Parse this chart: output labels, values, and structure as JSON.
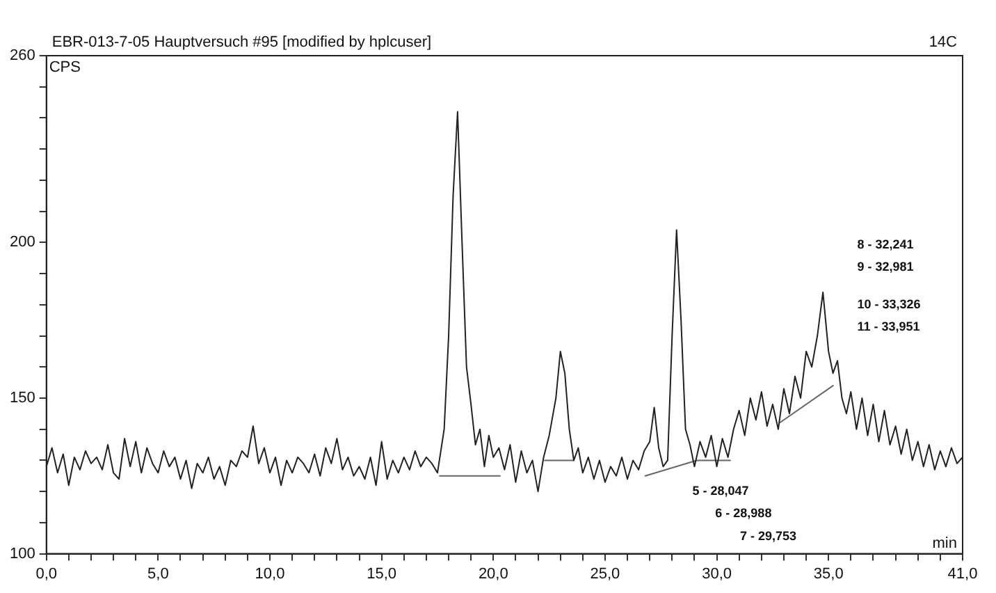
{
  "chart_data": {
    "type": "line",
    "title": "EBR-013-7-05 Hauptversuch #95 [modified by hplcuser]",
    "xlabel": "min",
    "ylabel": "CPS",
    "x": [
      0,
      0.25,
      0.5,
      0.75,
      1,
      1.25,
      1.5,
      1.75,
      2,
      2.25,
      2.5,
      2.75,
      3,
      3.25,
      3.5,
      3.75,
      4,
      4.25,
      4.5,
      4.75,
      5,
      5.25,
      5.5,
      5.75,
      6,
      6.25,
      6.5,
      6.75,
      7,
      7.25,
      7.5,
      7.75,
      8,
      8.25,
      8.5,
      8.75,
      9,
      9.25,
      9.5,
      9.75,
      10,
      10.25,
      10.5,
      10.75,
      11,
      11.25,
      11.5,
      11.75,
      12,
      12.25,
      12.5,
      12.75,
      13,
      13.25,
      13.5,
      13.75,
      14,
      14.25,
      14.5,
      14.75,
      15,
      15.25,
      15.5,
      15.75,
      16,
      16.25,
      16.5,
      16.75,
      17,
      17.25,
      17.5,
      17.8,
      18,
      18.2,
      18.4,
      18.6,
      18.8,
      19,
      19.2,
      19.4,
      19.6,
      19.8,
      20,
      20.25,
      20.5,
      20.75,
      21,
      21.25,
      21.5,
      21.75,
      22,
      22.25,
      22.5,
      22.8,
      23,
      23.2,
      23.4,
      23.6,
      23.8,
      24,
      24.25,
      24.5,
      24.75,
      25,
      25.25,
      25.5,
      25.75,
      26,
      26.25,
      26.5,
      26.75,
      27,
      27.2,
      27.4,
      27.6,
      27.8,
      28,
      28.2,
      28.4,
      28.6,
      28.8,
      29,
      29.25,
      29.5,
      29.75,
      30,
      30.25,
      30.5,
      30.75,
      31,
      31.25,
      31.5,
      31.75,
      32,
      32.25,
      32.5,
      32.75,
      33,
      33.25,
      33.5,
      33.75,
      34,
      34.25,
      34.5,
      34.75,
      35,
      35.2,
      35.4,
      35.6,
      35.8,
      36,
      36.25,
      36.5,
      36.75,
      37,
      37.25,
      37.5,
      37.75,
      38,
      38.25,
      38.5,
      38.75,
      39,
      39.25,
      39.5,
      39.75,
      40,
      40.25,
      40.5,
      40.75,
      41
    ],
    "series": [
      {
        "color": "#222222",
        "values": [
          128,
          134,
          126,
          132,
          122,
          131,
          127,
          133,
          129,
          131,
          127,
          135,
          126,
          124,
          137,
          128,
          136,
          126,
          134,
          129,
          126,
          133,
          128,
          131,
          124,
          130,
          121,
          129,
          126,
          131,
          124,
          128,
          122,
          130,
          128,
          133,
          131,
          141,
          129,
          134,
          126,
          131,
          122,
          130,
          126,
          131,
          129,
          126,
          132,
          125,
          134,
          129,
          137,
          127,
          131,
          125,
          128,
          124,
          131,
          122,
          136,
          124,
          130,
          126,
          131,
          127,
          133,
          128,
          131,
          129,
          126,
          140,
          170,
          215,
          242,
          200,
          160,
          148,
          135,
          140,
          128,
          138,
          131,
          134,
          127,
          135,
          123,
          133,
          126,
          130,
          120,
          131,
          138,
          150,
          165,
          158,
          140,
          130,
          134,
          126,
          131,
          124,
          130,
          123,
          128,
          125,
          131,
          124,
          130,
          127,
          133,
          136,
          147,
          134,
          128,
          130,
          170,
          204,
          175,
          140,
          135,
          128,
          136,
          131,
          138,
          128,
          137,
          131,
          140,
          146,
          138,
          150,
          143,
          152,
          141,
          148,
          140,
          153,
          145,
          157,
          150,
          165,
          160,
          170,
          184,
          165,
          158,
          162,
          150,
          145,
          152,
          140,
          150,
          138,
          148,
          136,
          146,
          135,
          141,
          132,
          140,
          130,
          136,
          128,
          135,
          127,
          133,
          128,
          134,
          129,
          131
        ]
      },
      {
        "color": "#666666",
        "x": [
          17.6,
          20.3,
          20.4,
          22.3,
          23.6,
          23.7,
          26.8,
          29.1,
          30.6,
          30.7,
          32.8,
          35.2
        ],
        "values": [
          125,
          125,
          null,
          130,
          130,
          null,
          125,
          130,
          130,
          null,
          142,
          154
        ]
      }
    ],
    "xlim": [
      0,
      41
    ],
    "ylim": [
      100,
      260
    ],
    "xticks": [
      {
        "value": 0,
        "label": "0,0"
      },
      {
        "value": 1,
        "label": null
      },
      {
        "value": 2,
        "label": null
      },
      {
        "value": 3,
        "label": null
      },
      {
        "value": 4,
        "label": null
      },
      {
        "value": 5,
        "label": "5,0"
      },
      {
        "value": 6,
        "label": null
      },
      {
        "value": 7,
        "label": null
      },
      {
        "value": 8,
        "label": null
      },
      {
        "value": 9,
        "label": null
      },
      {
        "value": 10,
        "label": "10,0"
      },
      {
        "value": 11,
        "label": null
      },
      {
        "value": 12,
        "label": null
      },
      {
        "value": 13,
        "label": null
      },
      {
        "value": 14,
        "label": null
      },
      {
        "value": 15,
        "label": "15,0"
      },
      {
        "value": 16,
        "label": null
      },
      {
        "value": 17,
        "label": null
      },
      {
        "value": 18,
        "label": null
      },
      {
        "value": 19,
        "label": null
      },
      {
        "value": 20,
        "label": "20,0"
      },
      {
        "value": 21,
        "label": null
      },
      {
        "value": 22,
        "label": null
      },
      {
        "value": 23,
        "label": null
      },
      {
        "value": 24,
        "label": null
      },
      {
        "value": 25,
        "label": "25,0"
      },
      {
        "value": 26,
        "label": null
      },
      {
        "value": 27,
        "label": null
      },
      {
        "value": 28,
        "label": null
      },
      {
        "value": 29,
        "label": null
      },
      {
        "value": 30,
        "label": "30,0"
      },
      {
        "value": 31,
        "label": null
      },
      {
        "value": 32,
        "label": null
      },
      {
        "value": 33,
        "label": null
      },
      {
        "value": 34,
        "label": null
      },
      {
        "value": 35,
        "label": "35,0"
      },
      {
        "value": 36,
        "label": null
      },
      {
        "value": 37,
        "label": null
      },
      {
        "value": 38,
        "label": null
      },
      {
        "value": 39,
        "label": null
      },
      {
        "value": 40,
        "label": null
      },
      {
        "value": 41,
        "label": "41,0"
      }
    ],
    "yticks": [
      100,
      {
        "value": 110,
        "label": null
      },
      {
        "value": 120,
        "label": null
      },
      {
        "value": 130,
        "label": null
      },
      {
        "value": 140,
        "label": null
      },
      150,
      {
        "value": 160,
        "label": null
      },
      {
        "value": 170,
        "label": null
      },
      {
        "value": 180,
        "label": null
      },
      {
        "value": 190,
        "label": null
      },
      200,
      {
        "value": 210,
        "label": null
      },
      {
        "value": 220,
        "label": null
      },
      {
        "value": 230,
        "label": null
      },
      {
        "value": 240,
        "label": null
      },
      {
        "value": 250,
        "label": null
      },
      260
    ],
    "annotations": [
      "14C",
      "8 - 32,241",
      "9 - 32,981",
      "10 - 33,326",
      "11 - 33,951",
      "5 - 28,047",
      "6 - 28,988",
      "7 - 29,753"
    ],
    "grid": false,
    "legend": false,
    "marker": "none",
    "line_style": "solid"
  }
}
